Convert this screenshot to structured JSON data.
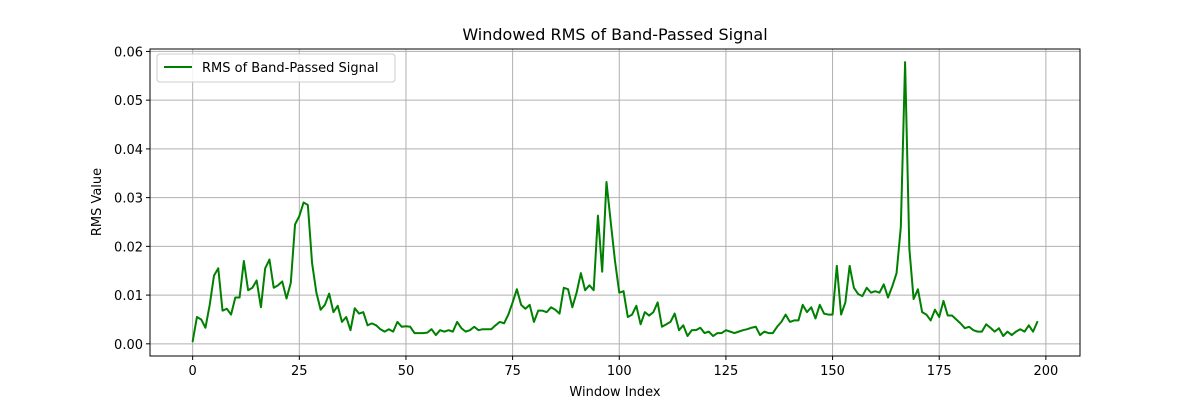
{
  "chart_data": {
    "type": "line",
    "title": "Windowed RMS of Band-Passed Signal",
    "xlabel": "Window Index",
    "ylabel": "RMS Value",
    "xlim": [
      -10,
      208
    ],
    "ylim": [
      -0.0025,
      0.0605
    ],
    "xticks": [
      0,
      25,
      50,
      75,
      100,
      125,
      150,
      175,
      200
    ],
    "yticks": [
      0.0,
      0.01,
      0.02,
      0.03,
      0.04,
      0.05,
      0.06
    ],
    "ytick_labels": [
      "0.00",
      "0.01",
      "0.02",
      "0.03",
      "0.04",
      "0.05",
      "0.06"
    ],
    "grid": true,
    "legend_position": "upper-left",
    "series": [
      {
        "name": "RMS of Band-Passed Signal",
        "color": "#008000",
        "x_start": 0,
        "x_step": 1,
        "values": [
          0.0005,
          0.0055,
          0.005,
          0.0033,
          0.008,
          0.014,
          0.0155,
          0.0068,
          0.0072,
          0.006,
          0.0095,
          0.0095,
          0.017,
          0.011,
          0.0115,
          0.013,
          0.0075,
          0.0155,
          0.0173,
          0.0115,
          0.012,
          0.0128,
          0.0093,
          0.0125,
          0.0245,
          0.0262,
          0.029,
          0.0285,
          0.0165,
          0.0105,
          0.007,
          0.008,
          0.0103,
          0.0065,
          0.0078,
          0.0045,
          0.0055,
          0.0028,
          0.0073,
          0.0062,
          0.0065,
          0.0038,
          0.0042,
          0.0038,
          0.003,
          0.0025,
          0.003,
          0.0025,
          0.0045,
          0.0035,
          0.0036,
          0.0035,
          0.0022,
          0.0022,
          0.0022,
          0.0023,
          0.003,
          0.0018,
          0.0028,
          0.0025,
          0.0028,
          0.0025,
          0.0045,
          0.0032,
          0.0025,
          0.0028,
          0.0035,
          0.0028,
          0.003,
          0.003,
          0.003,
          0.0038,
          0.0045,
          0.0042,
          0.006,
          0.0085,
          0.0112,
          0.008,
          0.0072,
          0.008,
          0.0045,
          0.0068,
          0.0068,
          0.0065,
          0.0075,
          0.007,
          0.0062,
          0.0115,
          0.0112,
          0.0075,
          0.0105,
          0.0145,
          0.011,
          0.012,
          0.011,
          0.0263,
          0.0148,
          0.0332,
          0.025,
          0.017,
          0.0105,
          0.0108,
          0.0055,
          0.006,
          0.0078,
          0.004,
          0.0065,
          0.0058,
          0.0065,
          0.0085,
          0.0035,
          0.004,
          0.0045,
          0.0062,
          0.0028,
          0.0038,
          0.0016,
          0.0028,
          0.0028,
          0.0033,
          0.0022,
          0.0025,
          0.0016,
          0.0022,
          0.0022,
          0.0028,
          0.0025,
          0.0022,
          0.0025,
          0.0028,
          0.003,
          0.0033,
          0.0035,
          0.0018,
          0.0025,
          0.0022,
          0.0022,
          0.0035,
          0.0045,
          0.006,
          0.0045,
          0.0048,
          0.0048,
          0.008,
          0.0065,
          0.0075,
          0.0052,
          0.008,
          0.0062,
          0.006,
          0.006,
          0.016,
          0.006,
          0.0085,
          0.016,
          0.0115,
          0.0102,
          0.0098,
          0.0115,
          0.0105,
          0.0108,
          0.0105,
          0.0122,
          0.0095,
          0.0118,
          0.0145,
          0.024,
          0.0578,
          0.0195,
          0.0092,
          0.0112,
          0.0065,
          0.006,
          0.0048,
          0.007,
          0.0055,
          0.0088,
          0.0058,
          0.0058,
          0.005,
          0.0042,
          0.0032,
          0.0035,
          0.0028,
          0.0025,
          0.0025,
          0.004,
          0.0033,
          0.0025,
          0.0032,
          0.0016,
          0.0025,
          0.0018,
          0.0025,
          0.003,
          0.0025,
          0.0038,
          0.0025,
          0.0045
        ]
      }
    ]
  }
}
